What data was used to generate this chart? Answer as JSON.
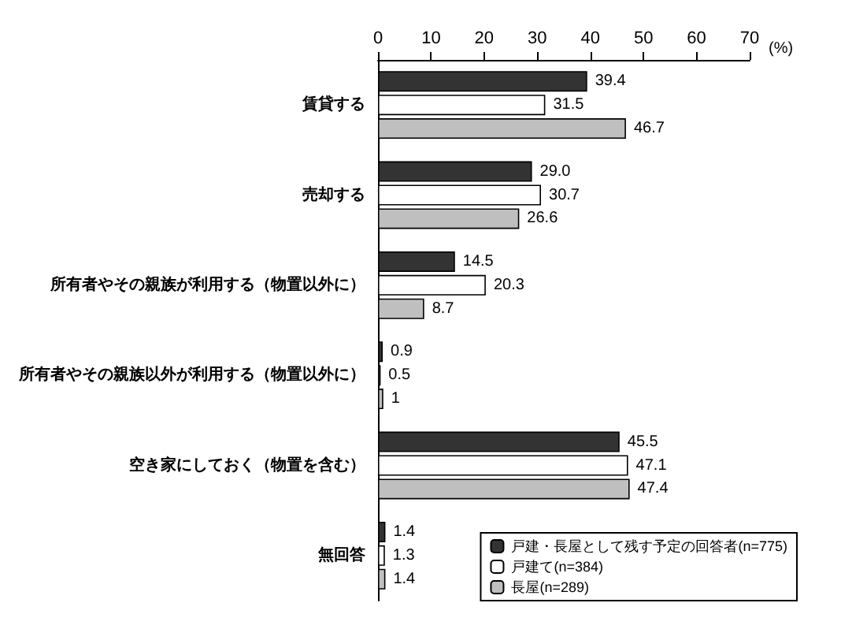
{
  "chart_data": {
    "type": "bar",
    "orientation": "horizontal",
    "xlabel": "(%)",
    "categories": [
      "賃貸する",
      "売却する",
      "所有者やその親族が利用する（物置以外に）",
      "所有者やその親族以外が利用する（物置以外に）",
      "空き家にしておく（物置を含む）",
      "無回答"
    ],
    "series": [
      {
        "name": "戸建・長屋として残す予定の回答者(n=775)",
        "color": "#333333",
        "values": [
          39.4,
          29.0,
          14.5,
          0.9,
          45.5,
          1.4
        ],
        "value_labels": [
          "39.4",
          "29.0",
          "14.5",
          "0.9",
          "45.5",
          "1.4"
        ]
      },
      {
        "name": "戸建て(n=384)",
        "color": "#ffffff",
        "values": [
          31.5,
          30.7,
          20.3,
          0.5,
          47.1,
          1.3
        ],
        "value_labels": [
          "31.5",
          "30.7",
          "20.3",
          "0.5",
          "47.1",
          "1.3"
        ]
      },
      {
        "name": "長屋(n=289)",
        "color": "#bfbfbf",
        "values": [
          46.7,
          26.6,
          8.7,
          1,
          47.4,
          1.4
        ],
        "value_labels": [
          "46.7",
          "26.6",
          "8.7",
          "1",
          "47.4",
          "1.4"
        ]
      }
    ],
    "xlim": [
      0,
      70
    ],
    "xticks": [
      0,
      10,
      20,
      30,
      40,
      50,
      60,
      70
    ],
    "grid": false,
    "legend": "bottom right"
  }
}
